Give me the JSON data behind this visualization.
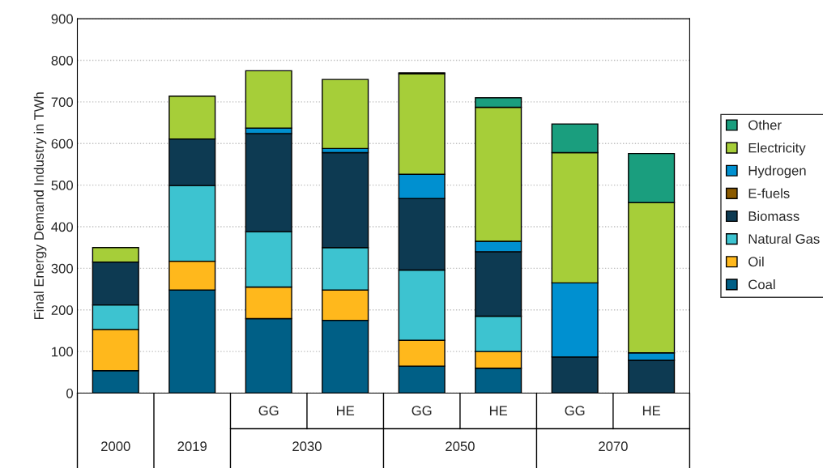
{
  "chart_data": {
    "type": "bar",
    "stacked": true,
    "ylabel": "Final Energy Demand Industry in TWh",
    "categories": [
      null,
      null,
      "GG",
      "HE",
      "GG",
      "HE",
      "GG",
      "HE"
    ],
    "annotations": [
      "2000",
      "2019",
      "2030",
      "2050",
      "2070"
    ],
    "series": [
      {
        "name": "Coal",
        "color": "#005f86",
        "values": [
          54,
          248,
          179,
          175,
          65,
          60,
          0,
          0
        ]
      },
      {
        "name": "Oil",
        "color": "#ffb81c",
        "values": [
          99,
          69,
          76,
          73,
          62,
          40,
          0,
          0
        ]
      },
      {
        "name": "Natural Gas",
        "color": "#3dc3d0",
        "values": [
          59,
          182,
          133,
          102,
          169,
          85,
          0,
          0
        ]
      },
      {
        "name": "Biomass",
        "color": "#0d3a52",
        "values": [
          103,
          112,
          236,
          228,
          172,
          155,
          87,
          79
        ]
      },
      {
        "name": "E-fuels",
        "color": "#8b5a00",
        "values": [
          0,
          0,
          0,
          0,
          0,
          0,
          0,
          0
        ]
      },
      {
        "name": "Hydrogen",
        "color": "#0090d0",
        "values": [
          0,
          0,
          13,
          10,
          58,
          25,
          178,
          18
        ]
      },
      {
        "name": "Electricity",
        "color": "#a6ce39",
        "values": [
          35,
          103,
          138,
          166,
          242,
          322,
          313,
          361
        ]
      },
      {
        "name": "Other",
        "color": "#1a9e7e",
        "values": [
          0,
          0,
          0,
          0,
          2,
          23,
          69,
          118
        ]
      }
    ],
    "ylim": [
      0,
      900
    ],
    "yticks": [
      0,
      100,
      200,
      300,
      400,
      500,
      600,
      700,
      800,
      900
    ],
    "grid": "y",
    "legend": "right"
  }
}
